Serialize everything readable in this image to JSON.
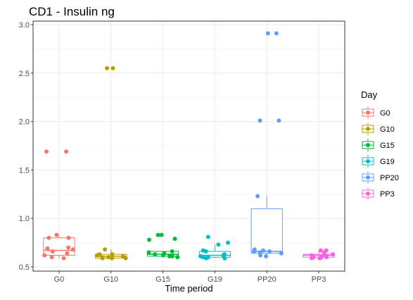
{
  "chart_data": {
    "type": "boxplot",
    "title": "CD1 - Insulin ng",
    "xlabel": "Time period",
    "ylabel": "",
    "ylim": [
      0.5,
      3.02
    ],
    "yticks": [
      0.5,
      1.0,
      1.5,
      2.0,
      2.5,
      3.0
    ],
    "ytick_labels": [
      "0.5",
      "1.0",
      "1.5",
      "2.0",
      "2.5",
      "3.0"
    ],
    "categories": [
      "G0",
      "G10",
      "G15",
      "G19",
      "PP20",
      "PP3"
    ],
    "grid": true,
    "legend_position": "right",
    "legend_title": "Day",
    "series": [
      {
        "name": "G0",
        "color": "#F8766D",
        "box": {
          "q1": 0.62,
          "median": 0.67,
          "q3": 0.8,
          "whisker_low": 0.59,
          "whisker_high": 0.82
        },
        "points": [
          1.69,
          1.69,
          0.83,
          0.8,
          0.8,
          0.7,
          0.69,
          0.68,
          0.66,
          0.64,
          0.62,
          0.6,
          0.59
        ]
      },
      {
        "name": "G10",
        "color": "#B79F00",
        "box": {
          "q1": 0.59,
          "median": 0.61,
          "q3": 0.63,
          "whisker_low": 0.59,
          "whisker_high": 0.68
        },
        "points": [
          2.55,
          2.55,
          0.68,
          0.63,
          0.63,
          0.62,
          0.61,
          0.6,
          0.6,
          0.59,
          0.59,
          0.59
        ]
      },
      {
        "name": "G15",
        "color": "#00BA38",
        "box": {
          "q1": 0.61,
          "median": 0.63,
          "q3": 0.66,
          "whisker_low": 0.6,
          "whisker_high": 0.66
        },
        "points": [
          0.83,
          0.83,
          0.79,
          0.78,
          0.66,
          0.65,
          0.64,
          0.63,
          0.62,
          0.61,
          0.61,
          0.6
        ]
      },
      {
        "name": "G19",
        "color": "#00BFC4",
        "box": {
          "q1": 0.6,
          "median": 0.62,
          "q3": 0.66,
          "whisker_low": 0.59,
          "whisker_high": 0.73
        },
        "points": [
          0.81,
          0.75,
          0.73,
          0.67,
          0.66,
          0.63,
          0.62,
          0.61,
          0.6,
          0.6,
          0.59,
          0.59
        ]
      },
      {
        "name": "PP20",
        "color": "#619CFF",
        "box": {
          "q1": 0.64,
          "median": 0.66,
          "q3": 1.1,
          "whisker_low": 0.62,
          "whisker_high": 1.23
        },
        "points": [
          2.91,
          2.91,
          2.01,
          2.01,
          1.23,
          0.68,
          0.67,
          0.66,
          0.66,
          0.65,
          0.64,
          0.62,
          0.61
        ]
      },
      {
        "name": "PP3",
        "color": "#F564E3",
        "box": {
          "q1": 0.6,
          "median": 0.62,
          "q3": 0.63,
          "whisker_low": 0.59,
          "whisker_high": 0.67
        },
        "points": [
          0.67,
          0.67,
          0.65,
          0.63,
          0.62,
          0.62,
          0.61,
          0.6,
          0.6,
          0.6,
          0.59,
          0.59
        ]
      }
    ]
  }
}
